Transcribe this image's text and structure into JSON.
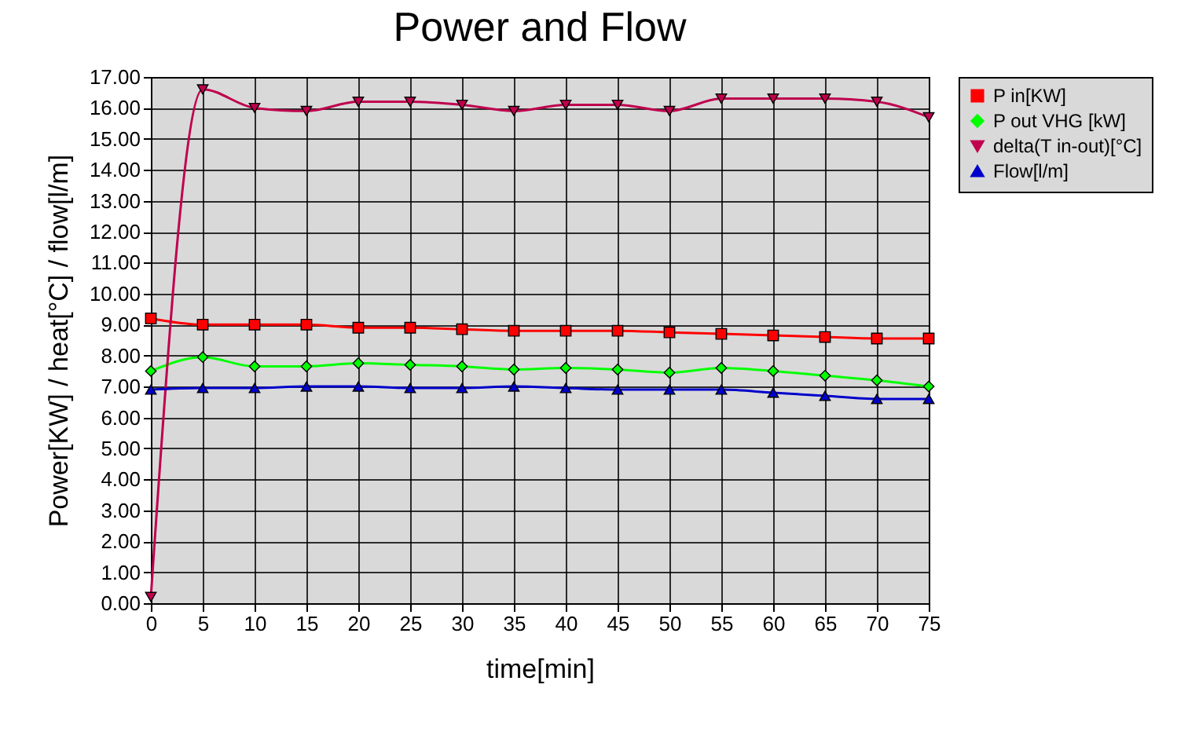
{
  "chart_data": {
    "type": "line",
    "title": "Power and Flow",
    "xlabel": "time[min]",
    "ylabel": "Power[KW] / heat[°C] / flow[l/m]",
    "x": [
      0,
      5,
      10,
      15,
      20,
      25,
      30,
      35,
      40,
      45,
      50,
      55,
      60,
      65,
      70,
      75
    ],
    "xlim": [
      0,
      75
    ],
    "xticks": [
      0,
      5,
      10,
      15,
      20,
      25,
      30,
      35,
      40,
      45,
      50,
      55,
      60,
      65,
      70,
      75
    ],
    "ylim": [
      0,
      17
    ],
    "yticks": [
      {
        "value": 0,
        "label": "0.00"
      },
      {
        "value": 1,
        "label": "1.00"
      },
      {
        "value": 2,
        "label": "2.00"
      },
      {
        "value": 3,
        "label": "3.00"
      },
      {
        "value": 4,
        "label": "4.00"
      },
      {
        "value": 5,
        "label": "5.00"
      },
      {
        "value": 6,
        "label": "6.00"
      },
      {
        "value": 7,
        "label": "7.00"
      },
      {
        "value": 8,
        "label": "8.00"
      },
      {
        "value": 9,
        "label": "9.00"
      },
      {
        "value": 10,
        "label": "10.00"
      },
      {
        "value": 11,
        "label": "11.00"
      },
      {
        "value": 12,
        "label": "12.00"
      },
      {
        "value": 13,
        "label": "13.00"
      },
      {
        "value": 14,
        "label": "14.00"
      },
      {
        "value": 15,
        "label": "15.00"
      },
      {
        "value": 16,
        "label": "16.00"
      },
      {
        "value": 17,
        "label": "17.00"
      }
    ],
    "grid": true,
    "legend": "right",
    "series": [
      {
        "name": "P in[KW]",
        "color": "#ff0000",
        "marker": "square",
        "values": [
          9.2,
          9.0,
          9.0,
          9.0,
          8.9,
          8.9,
          8.85,
          8.8,
          8.8,
          8.8,
          8.75,
          8.7,
          8.65,
          8.6,
          8.55,
          8.55
        ]
      },
      {
        "name": "P out VHG [kW]",
        "color": "#00ff00",
        "marker": "diamond",
        "values": [
          7.5,
          7.95,
          7.65,
          7.65,
          7.75,
          7.7,
          7.65,
          7.55,
          7.6,
          7.55,
          7.45,
          7.6,
          7.5,
          7.35,
          7.2,
          7.0
        ]
      },
      {
        "name": "delta(T in-out)[°C]",
        "color": "#c0004e",
        "marker": "triangle-down",
        "values": [
          0.2,
          16.6,
          16.0,
          15.9,
          16.2,
          16.2,
          16.1,
          15.9,
          16.1,
          16.1,
          15.9,
          16.3,
          16.3,
          16.3,
          16.2,
          15.7
        ]
      },
      {
        "name": "Flow[l/m]",
        "color": "#0000cc",
        "marker": "triangle-up",
        "values": [
          6.9,
          6.95,
          6.95,
          7.0,
          7.0,
          6.95,
          6.95,
          7.0,
          6.95,
          6.9,
          6.9,
          6.9,
          6.8,
          6.7,
          6.6,
          6.6
        ]
      }
    ]
  }
}
